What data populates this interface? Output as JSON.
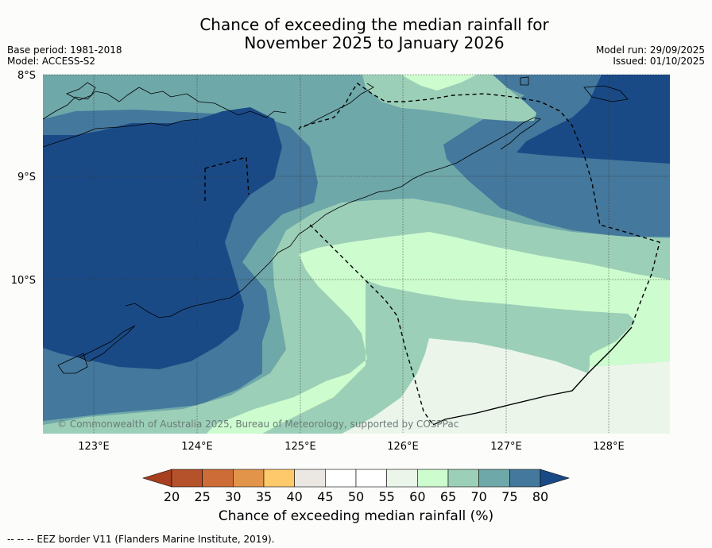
{
  "title": {
    "line1": "Chance of exceeding the median rainfall for",
    "line2": "November 2025 to January 2026"
  },
  "meta": {
    "base_period": "Base period: 1981-2018",
    "model": "Model: ACCESS-S2",
    "model_run": "Model run: 29/09/2025",
    "issued": "Issued: 01/10/2025"
  },
  "map": {
    "lat_labels": [
      "8°S",
      "9°S",
      "10°S"
    ],
    "lon_labels": [
      "123°E",
      "124°E",
      "125°E",
      "126°E",
      "127°E",
      "128°E"
    ],
    "copyright": "© Commonwealth of Australia 2025, Bureau of Meteorology, supported by COSPPac"
  },
  "colorbar": {
    "tick_labels": [
      "20",
      "25",
      "30",
      "35",
      "40",
      "45",
      "50",
      "55",
      "60",
      "65",
      "70",
      "75",
      "80"
    ],
    "colors": [
      "#a83f1e",
      "#b6522b",
      "#cd6c36",
      "#e3944b",
      "#fec96b",
      "#ebe8e4",
      "#ffffff",
      "#ffffff",
      "#ebf5ea",
      "#cdfcce",
      "#9ccfb7",
      "#6fa8a9",
      "#44789c",
      "#1a4a86"
    ],
    "title": "Chance of exceeding median rainfall (%)"
  },
  "footer": {
    "text": "--  --  -- EEZ border V11 (Flanders Marine Institute, 2019)."
  }
}
